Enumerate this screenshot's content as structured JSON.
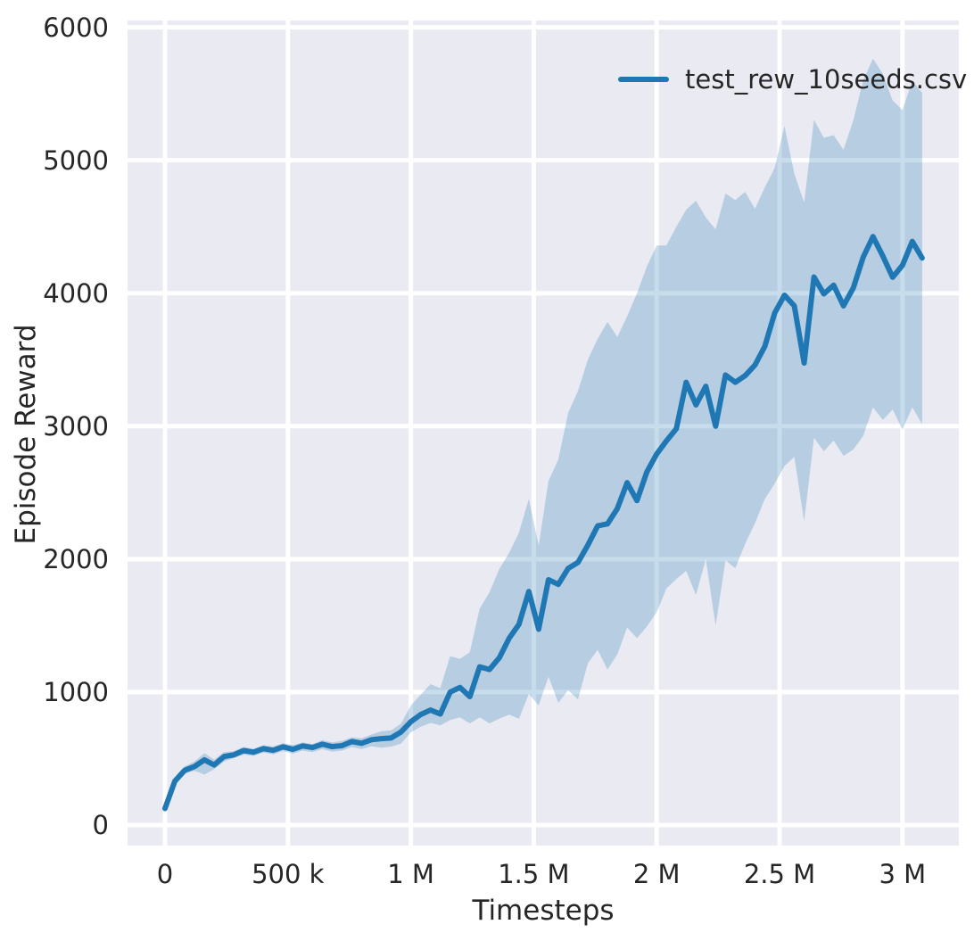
{
  "figure": {
    "background": "#ffffff",
    "plot_background": "#eaeaf2",
    "grid_color": "#ffffff",
    "text_color": "#262626"
  },
  "chart_data": {
    "type": "line",
    "title": "",
    "xlabel": "Timesteps",
    "ylabel": "Episode Reward",
    "grid": true,
    "legend_position": "upper right",
    "xlim": [
      -154000,
      3234000
    ],
    "ylim": [
      -181,
      6051
    ],
    "x_ticks": {
      "values": [
        0,
        500000,
        1000000,
        1500000,
        2000000,
        2500000,
        3000000
      ],
      "labels": [
        "0",
        "500 k",
        "1 M",
        "1.5 M",
        "2 M",
        "2.5 M",
        "3 M"
      ]
    },
    "y_ticks": {
      "values": [
        0,
        1000,
        2000,
        3000,
        4000,
        5000,
        6000
      ],
      "labels": [
        "0",
        "1000",
        "2000",
        "3000",
        "4000",
        "5000",
        "6000"
      ]
    },
    "series": [
      {
        "name": "test_rew_10seeds.csv",
        "color": "#1f77b4",
        "band_opacity": 0.25,
        "x": [
          0,
          40000,
          80000,
          120000,
          160000,
          200000,
          240000,
          280000,
          320000,
          360000,
          400000,
          440000,
          480000,
          520000,
          560000,
          600000,
          640000,
          680000,
          720000,
          760000,
          800000,
          840000,
          880000,
          920000,
          960000,
          1000000,
          1040000,
          1080000,
          1120000,
          1160000,
          1200000,
          1240000,
          1280000,
          1320000,
          1360000,
          1400000,
          1440000,
          1480000,
          1520000,
          1560000,
          1600000,
          1640000,
          1680000,
          1720000,
          1760000,
          1800000,
          1840000,
          1880000,
          1920000,
          1960000,
          2000000,
          2040000,
          2080000,
          2120000,
          2160000,
          2200000,
          2240000,
          2280000,
          2320000,
          2360000,
          2400000,
          2440000,
          2480000,
          2520000,
          2560000,
          2600000,
          2640000,
          2680000,
          2720000,
          2760000,
          2800000,
          2840000,
          2880000,
          2920000,
          2960000,
          3000000,
          3040000,
          3080000
        ],
        "mean": [
          125,
          330,
          412,
          440,
          490,
          452,
          515,
          528,
          560,
          548,
          575,
          562,
          588,
          570,
          595,
          583,
          608,
          590,
          597,
          628,
          615,
          642,
          650,
          655,
          700,
          777,
          831,
          865,
          835,
          1000,
          1035,
          966,
          1190,
          1170,
          1258,
          1405,
          1510,
          1757,
          1473,
          1845,
          1810,
          1930,
          1975,
          2105,
          2250,
          2265,
          2380,
          2575,
          2440,
          2655,
          2790,
          2890,
          2980,
          3330,
          3160,
          3300,
          3000,
          3385,
          3330,
          3380,
          3460,
          3600,
          3850,
          3985,
          3905,
          3475,
          4122,
          3995,
          4060,
          3905,
          4040,
          4270,
          4426,
          4280,
          4120,
          4210,
          4390,
          4265
        ],
        "band_lo": [
          108,
          305,
          385,
          408,
          380,
          420,
          478,
          503,
          530,
          520,
          545,
          532,
          556,
          537,
          560,
          548,
          571,
          553,
          560,
          586,
          572,
          592,
          581,
          590,
          612,
          697,
          740,
          768,
          750,
          790,
          810,
          764,
          810,
          765,
          800,
          830,
          800,
          987,
          899,
          1115,
          919,
          1014,
          946,
          1216,
          1318,
          1169,
          1284,
          1486,
          1405,
          1493,
          1600,
          1780,
          1850,
          1912,
          1730,
          2000,
          1500,
          1990,
          1932,
          2115,
          2270,
          2453,
          2568,
          2700,
          2770,
          2285,
          2912,
          2811,
          2892,
          2777,
          2824,
          2926,
          3142,
          3047,
          3125,
          2975,
          3142,
          3014
        ],
        "band_hi": [
          150,
          358,
          440,
          478,
          540,
          492,
          548,
          556,
          588,
          573,
          600,
          590,
          616,
          600,
          622,
          610,
          638,
          622,
          633,
          660,
          652,
          681,
          705,
          712,
          762,
          899,
          980,
          1060,
          1030,
          1270,
          1250,
          1300,
          1628,
          1750,
          1926,
          2047,
          2200,
          2453,
          2101,
          2588,
          2750,
          3100,
          3264,
          3500,
          3657,
          3784,
          3670,
          3826,
          4000,
          4200,
          4358,
          4360,
          4500,
          4628,
          4696,
          4570,
          4480,
          4750,
          4700,
          4763,
          4635,
          4797,
          4941,
          5257,
          4900,
          4682,
          5304,
          5169,
          5189,
          5078,
          5300,
          5600,
          5764,
          5650,
          5450,
          5378,
          5595,
          5507
        ]
      }
    ]
  }
}
